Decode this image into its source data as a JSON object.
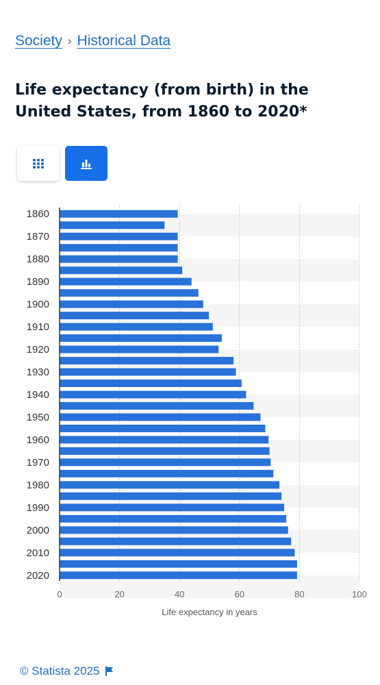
{
  "breadcrumb": {
    "item1": "Society",
    "separator": "›",
    "item2": "Historical Data"
  },
  "title": "Life expectancy (from birth) in the United States, from 1860 to 2020*",
  "view_buttons": [
    {
      "icon": "table-grid-icon",
      "active": false
    },
    {
      "icon": "bar-chart-icon",
      "active": true
    }
  ],
  "colors": {
    "bar": "#2872d9",
    "accent": "#1770e8",
    "link": "#1f6fc5"
  },
  "chart_data": {
    "type": "bar",
    "orientation": "horizontal",
    "categories": [
      "1860",
      "1865",
      "1870",
      "1875",
      "1880",
      "1885",
      "1890",
      "1895",
      "1900",
      "1905",
      "1910",
      "1915",
      "1920",
      "1925",
      "1930",
      "1935",
      "1940",
      "1945",
      "1950",
      "1955",
      "1960",
      "1965",
      "1970",
      "1975",
      "1980",
      "1985",
      "1990",
      "1995",
      "2000",
      "2005",
      "2010",
      "2015",
      "2020"
    ],
    "values": [
      39.4,
      35.0,
      39.4,
      39.4,
      39.4,
      40.9,
      44.0,
      46.3,
      47.9,
      49.8,
      51.1,
      54.1,
      53.0,
      58.0,
      58.8,
      60.7,
      62.2,
      64.7,
      67.0,
      68.6,
      69.7,
      70.0,
      70.4,
      71.3,
      73.3,
      74.0,
      74.9,
      75.6,
      76.2,
      77.2,
      78.4,
      79.2,
      79.2
    ],
    "tick_labels_shown": [
      "1860",
      "1870",
      "1880",
      "1890",
      "1900",
      "1910",
      "1920",
      "1930",
      "1940",
      "1950",
      "1960",
      "1970",
      "1980",
      "1990",
      "2000",
      "2010",
      "2020"
    ],
    "x_ticks": [
      0,
      20,
      40,
      60,
      80,
      100
    ],
    "xlim": [
      0,
      100
    ],
    "xlabel": "Life expectancy in years",
    "ylabel": "",
    "grid": true
  },
  "footer": {
    "copyright": "© Statista 2025",
    "icon": "flag-icon"
  }
}
